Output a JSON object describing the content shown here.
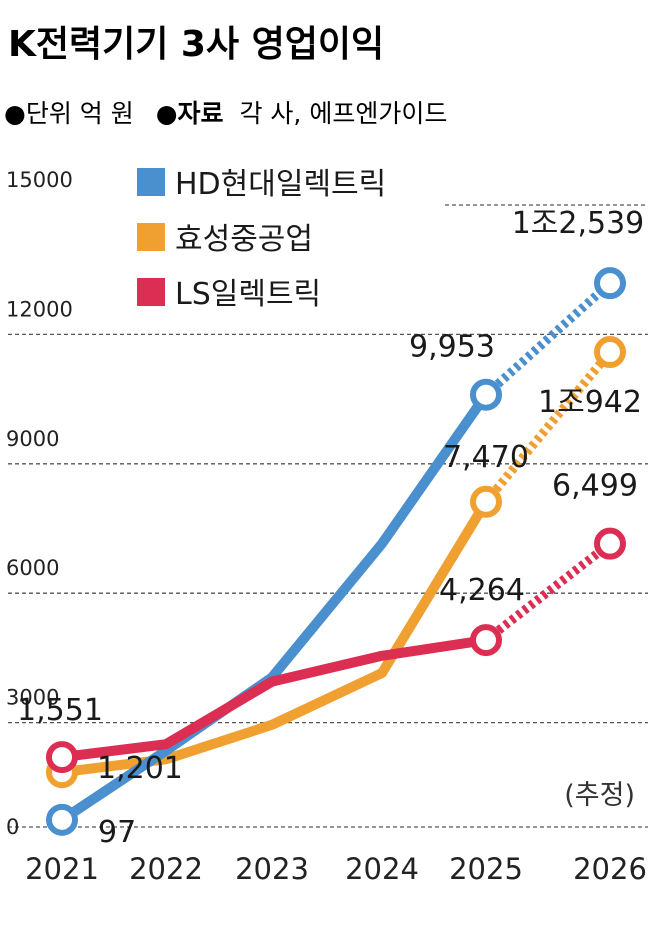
{
  "title": "K전력기기 3사 영업이익",
  "unit_note": {
    "bullet": "●",
    "unit": "단위 억 원",
    "source_label": "자료",
    "source_text": "각 사, 에프엔가이드"
  },
  "estimate_note": "(추정)",
  "chart_data": {
    "type": "line",
    "title": "K전력기기 3사 영업이익",
    "xlabel": "",
    "ylabel": "",
    "x": [
      "2021",
      "2022",
      "2023",
      "2024",
      "2025",
      "2026"
    ],
    "y_ticks": [
      "0",
      "3000",
      "6000",
      "9000",
      "12000",
      "15000"
    ],
    "ylim": [
      0,
      15000
    ],
    "grid": true,
    "legend_position": "top-left",
    "estimated_from": "2025",
    "series": [
      {
        "name": "HD현대일렉트릭",
        "color": "#4a8fce",
        "values": [
          97,
          1700,
          3400,
          6500,
          9953,
          12539
        ],
        "labels": [
          {
            "index": 0,
            "text": "97"
          },
          {
            "index": 4,
            "text": "9,953"
          },
          {
            "index": 5,
            "text": "1조2,539"
          }
        ]
      },
      {
        "name": "효성중공업",
        "color": "#f0a030",
        "values": [
          1201,
          1500,
          2300,
          3500,
          7470,
          10942
        ],
        "labels": [
          {
            "index": 0,
            "text": "1,201"
          },
          {
            "index": 4,
            "text": "7,470"
          },
          {
            "index": 5,
            "text": "1조942"
          }
        ]
      },
      {
        "name": "LS일렉트릭",
        "color": "#dc2d52",
        "values": [
          1551,
          1850,
          3300,
          3900,
          4264,
          6499
        ],
        "labels": [
          {
            "index": 0,
            "text": "1,551"
          },
          {
            "index": 4,
            "text": "4,264"
          },
          {
            "index": 5,
            "text": "6,499"
          }
        ]
      }
    ]
  }
}
